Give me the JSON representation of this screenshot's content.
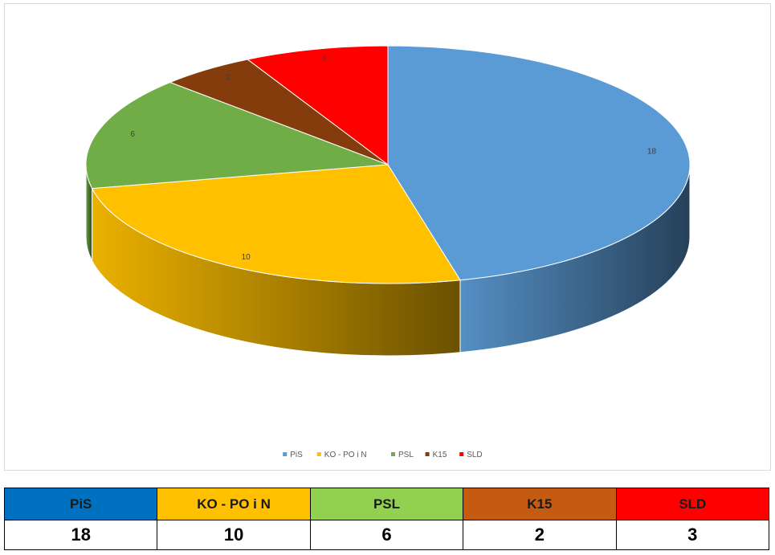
{
  "chart_data": {
    "type": "pie",
    "three_d": true,
    "categories": [
      "PiS",
      "KO - PO i N",
      "PSL",
      "K15",
      "SLD"
    ],
    "values": [
      18,
      10,
      6,
      2,
      3
    ],
    "colors": [
      "#5b9bd5",
      "#ffc000",
      "#70ad47",
      "#843c0c",
      "#ff0000"
    ],
    "legend": "bottom"
  },
  "table": {
    "headers": [
      {
        "label": "PiS",
        "bg": "#0070c0"
      },
      {
        "label": "KO - PO i N",
        "bg": "#ffc000"
      },
      {
        "label": "PSL",
        "bg": "#92d050"
      },
      {
        "label": "K15",
        "bg": "#c55a11"
      },
      {
        "label": "SLD",
        "bg": "#ff0000"
      }
    ],
    "values": [
      "18",
      "10",
      "6",
      "2",
      "3"
    ]
  }
}
